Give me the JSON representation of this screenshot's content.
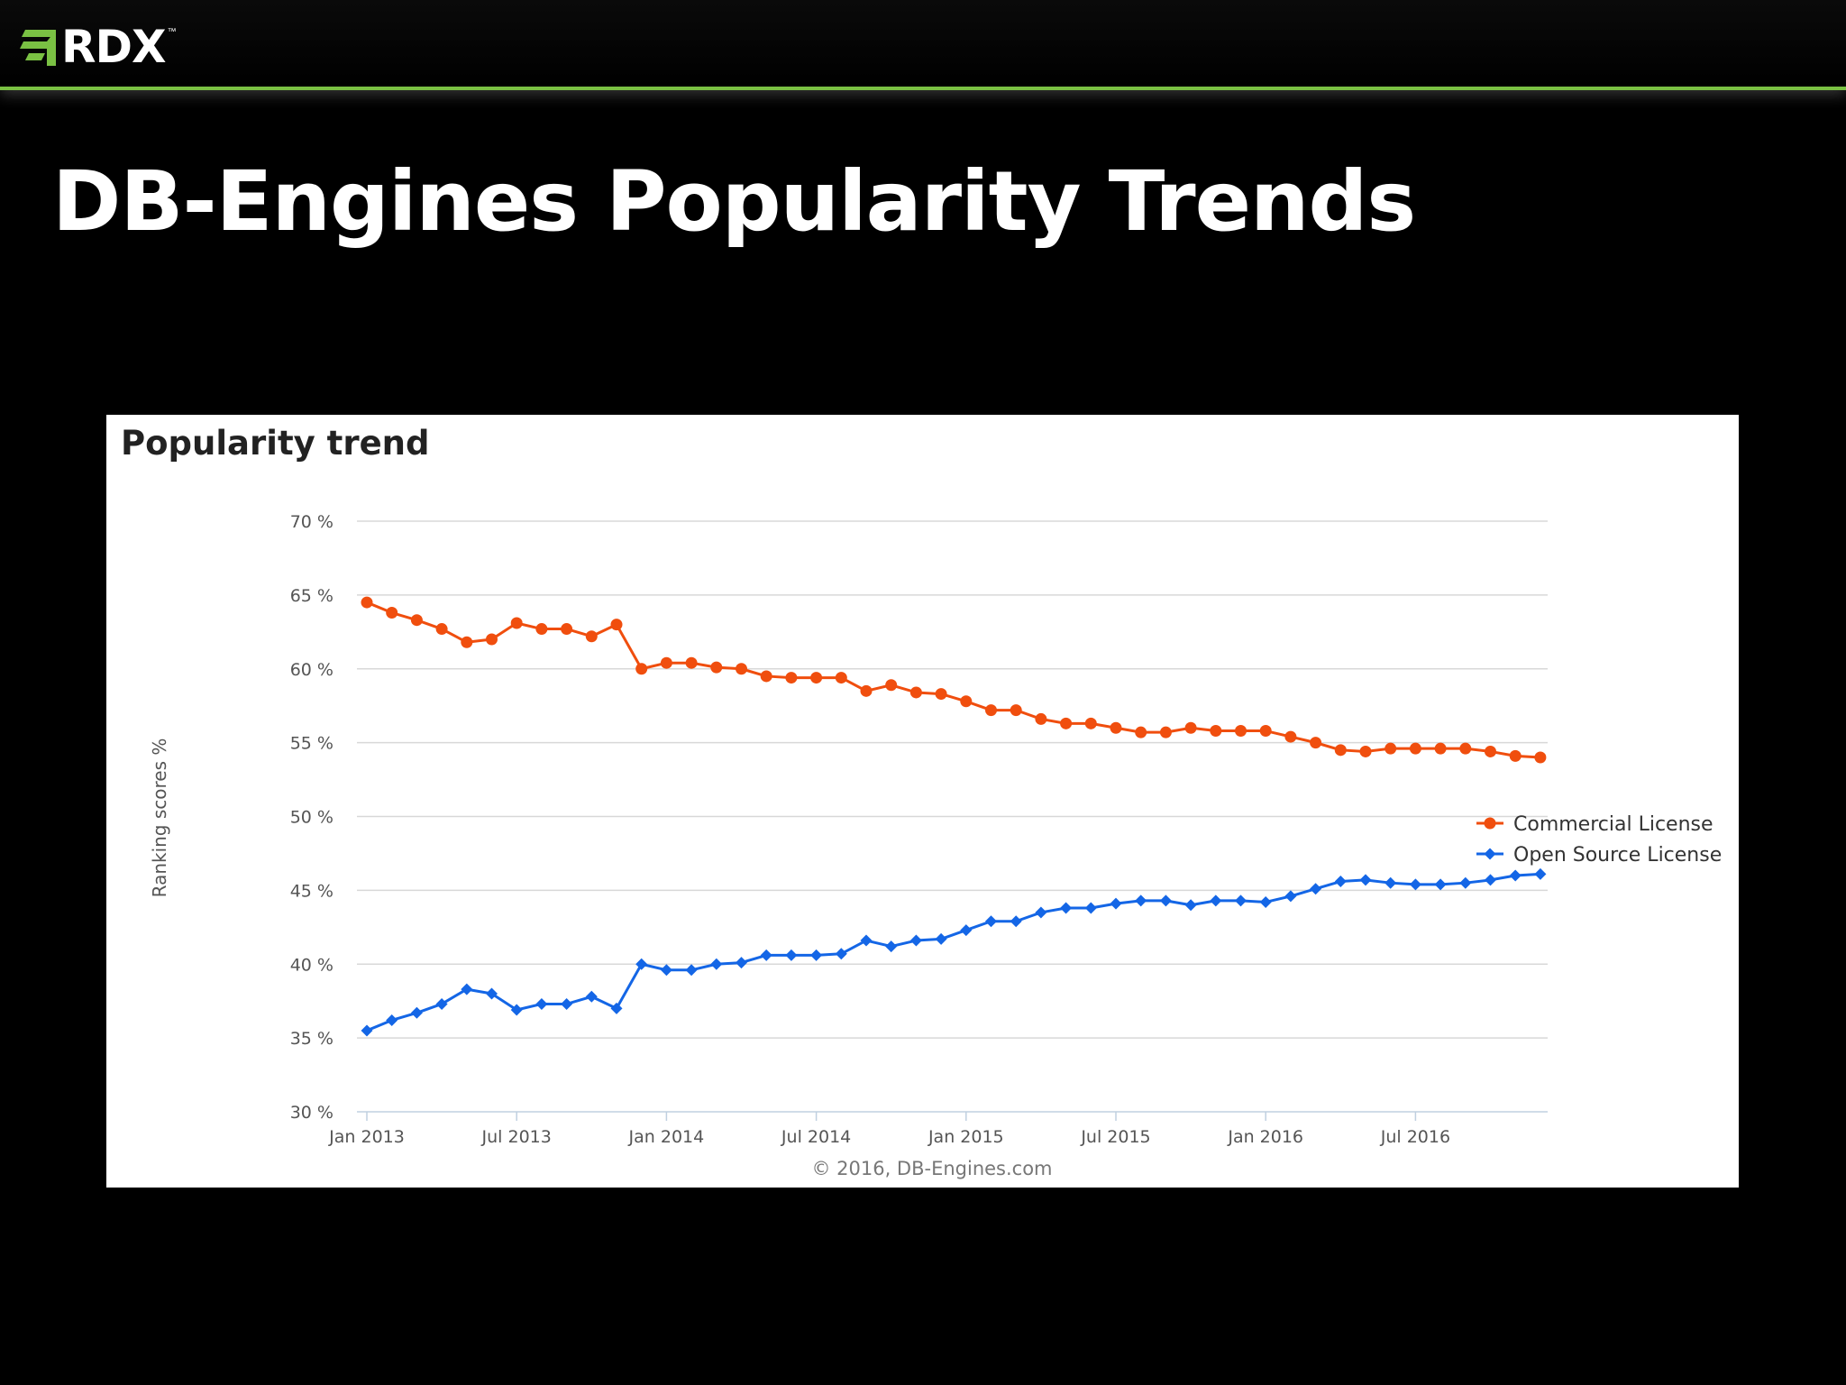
{
  "header": {
    "logo_text": "RDX",
    "logo_tm": "™",
    "accent_color": "#7ac143"
  },
  "slide": {
    "title": "DB-Engines Popularity Trends"
  },
  "chart_data": {
    "type": "line",
    "title": "Popularity trend",
    "ylabel": "Ranking scores %",
    "xlabel": "",
    "ylim": [
      30,
      70
    ],
    "yticks": [
      {
        "value": 70,
        "label": "70 %"
      },
      {
        "value": 65,
        "label": "65 %"
      },
      {
        "value": 60,
        "label": "60 %"
      },
      {
        "value": 55,
        "label": "55 %"
      },
      {
        "value": 50,
        "label": "50 %"
      },
      {
        "value": 45,
        "label": "45 %"
      },
      {
        "value": 40,
        "label": "40 %"
      },
      {
        "value": 35,
        "label": "35 %"
      },
      {
        "value": 30,
        "label": "30 %"
      }
    ],
    "xlim": [
      "2013-01",
      "2016-12"
    ],
    "xticks": [
      {
        "value": "2013-01",
        "label": "Jan 2013"
      },
      {
        "value": "2013-07",
        "label": "Jul 2013"
      },
      {
        "value": "2014-01",
        "label": "Jan 2014"
      },
      {
        "value": "2014-07",
        "label": "Jul 2014"
      },
      {
        "value": "2015-01",
        "label": "Jan 2015"
      },
      {
        "value": "2015-07",
        "label": "Jul 2015"
      },
      {
        "value": "2016-01",
        "label": "Jan 2016"
      },
      {
        "value": "2016-07",
        "label": "Jul 2016"
      }
    ],
    "x": [
      "2013-01",
      "2013-02",
      "2013-03",
      "2013-04",
      "2013-05",
      "2013-06",
      "2013-07",
      "2013-08",
      "2013-09",
      "2013-10",
      "2013-11",
      "2013-12",
      "2014-01",
      "2014-02",
      "2014-03",
      "2014-04",
      "2014-05",
      "2014-06",
      "2014-07",
      "2014-08",
      "2014-09",
      "2014-10",
      "2014-11",
      "2014-12",
      "2015-01",
      "2015-02",
      "2015-03",
      "2015-04",
      "2015-05",
      "2015-06",
      "2015-07",
      "2015-08",
      "2015-09",
      "2015-10",
      "2015-11",
      "2015-12",
      "2016-01",
      "2016-02",
      "2016-03",
      "2016-04",
      "2016-05",
      "2016-06",
      "2016-07",
      "2016-08",
      "2016-09",
      "2016-10",
      "2016-11",
      "2016-12"
    ],
    "series": [
      {
        "name": "Commercial License",
        "color": "#f04e0e",
        "marker": "circle",
        "values": [
          64.5,
          63.8,
          63.3,
          62.7,
          61.8,
          62.0,
          63.1,
          62.7,
          62.7,
          62.2,
          63.0,
          60.0,
          60.4,
          60.4,
          60.1,
          60.0,
          59.5,
          59.4,
          59.4,
          59.4,
          58.5,
          58.9,
          58.4,
          58.3,
          57.8,
          57.2,
          57.2,
          56.6,
          56.3,
          56.3,
          56.0,
          55.7,
          55.7,
          56.0,
          55.8,
          55.8,
          55.8,
          55.4,
          55.0,
          54.5,
          54.4,
          54.6,
          54.6,
          54.6,
          54.6,
          54.4,
          54.1,
          54.0
        ]
      },
      {
        "name": "Open Source License",
        "color": "#1466e6",
        "marker": "diamond",
        "values": [
          35.5,
          36.2,
          36.7,
          37.3,
          38.3,
          38.0,
          36.9,
          37.3,
          37.3,
          37.8,
          37.0,
          40.0,
          39.6,
          39.6,
          40.0,
          40.1,
          40.6,
          40.6,
          40.6,
          40.7,
          41.6,
          41.2,
          41.6,
          41.7,
          42.3,
          42.9,
          42.9,
          43.5,
          43.8,
          43.8,
          44.1,
          44.3,
          44.3,
          44.0,
          44.3,
          44.3,
          44.2,
          44.6,
          45.1,
          45.6,
          45.7,
          45.5,
          45.4,
          45.4,
          45.5,
          45.7,
          46.0,
          46.1
        ]
      }
    ],
    "legend_position": "right",
    "grid": true,
    "credit": "© 2016, DB-Engines.com"
  }
}
